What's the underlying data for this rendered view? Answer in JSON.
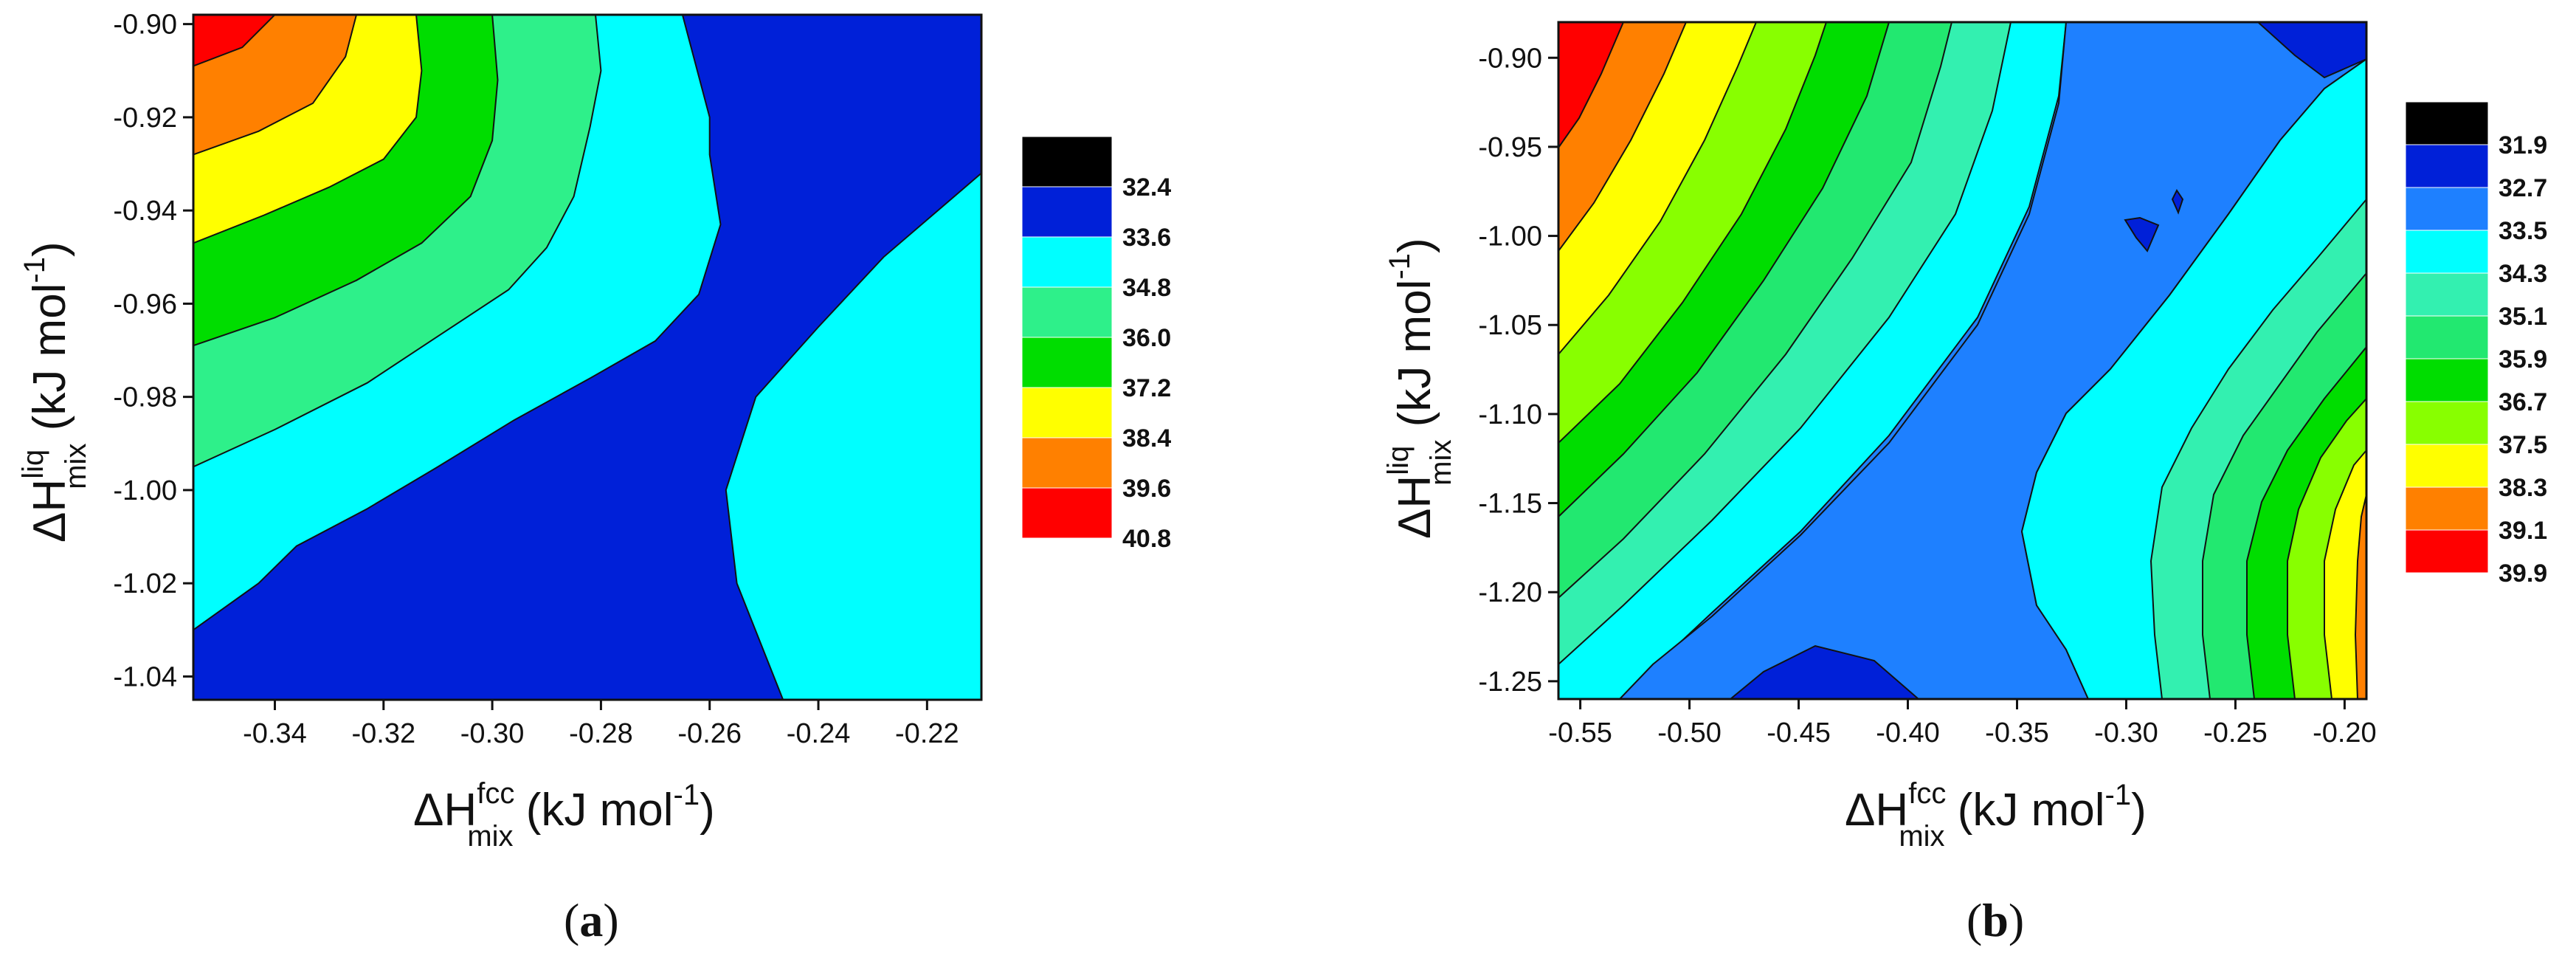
{
  "chart_data": [
    {
      "type": "heatmap",
      "panel_label": "a",
      "xlabel": {
        "main": "ΔH",
        "sup": "fcc",
        "sub": "mix",
        "unit": " (kJ mol",
        "unit_exp": "-1",
        "close": ")"
      },
      "ylabel": {
        "main": "ΔH",
        "sup": "liq",
        "sub": "mix",
        "unit": " (kJ mol",
        "unit_exp": "-1",
        "close": ")"
      },
      "xlim": [
        -0.355,
        -0.21
      ],
      "ylim": [
        -1.045,
        -0.898
      ],
      "x_ticks": [
        "-0.34",
        "-0.32",
        "-0.30",
        "-0.28",
        "-0.26",
        "-0.24",
        "-0.22"
      ],
      "x_tick_values": [
        -0.34,
        -0.32,
        -0.3,
        -0.28,
        -0.26,
        -0.24,
        -0.22
      ],
      "y_ticks": [
        "-0.90",
        "-0.92",
        "-0.94",
        "-0.96",
        "-0.98",
        "-1.00",
        "-1.02",
        "-1.04"
      ],
      "y_tick_values": [
        -0.9,
        -0.92,
        -0.94,
        -0.96,
        -0.98,
        -1.0,
        -1.02,
        -1.04
      ],
      "legend": {
        "labels": [
          "32.4",
          "33.6",
          "34.8",
          "36.0",
          "37.2",
          "38.4",
          "39.6",
          "40.8"
        ],
        "colors": [
          "#000000",
          "#0020d8",
          "#00ffff",
          "#2ef08a",
          "#00dd00",
          "#ffff00",
          "#ff8000",
          "#ff0000"
        ]
      },
      "regions": [
        {
          "level": "33.6",
          "color": "#00ffff",
          "points": [
            [
              -0.2465,
              -1.045
            ],
            [
              -0.255,
              -1.02
            ],
            [
              -0.257,
              -1.0
            ],
            [
              -0.2515,
              -0.98
            ],
            [
              -0.24,
              -0.965
            ],
            [
              -0.228,
              -0.95
            ],
            [
              -0.21,
              -0.932
            ],
            [
              -0.21,
              -1.045
            ]
          ]
        },
        {
          "level": "33.6",
          "color": "#00ffff",
          "points": [
            [
              -0.355,
              -1.03
            ],
            [
              -0.343,
              -1.02
            ],
            [
              -0.336,
              -1.012
            ],
            [
              -0.323,
              -1.004
            ],
            [
              -0.31,
              -0.995
            ],
            [
              -0.296,
              -0.985
            ],
            [
              -0.282,
              -0.976
            ],
            [
              -0.27,
              -0.968
            ],
            [
              -0.262,
              -0.958
            ],
            [
              -0.258,
              -0.943
            ],
            [
              -0.26,
              -0.928
            ],
            [
              -0.26,
              -0.92
            ],
            [
              -0.265,
              -0.898
            ],
            [
              -0.355,
              -0.898
            ]
          ]
        },
        {
          "level": "34.8",
          "color": "#2ef08a",
          "points": [
            [
              -0.355,
              -0.995
            ],
            [
              -0.34,
              -0.987
            ],
            [
              -0.323,
              -0.977
            ],
            [
              -0.31,
              -0.967
            ],
            [
              -0.297,
              -0.957
            ],
            [
              -0.29,
              -0.948
            ],
            [
              -0.285,
              -0.937
            ],
            [
              -0.282,
              -0.922
            ],
            [
              -0.28,
              -0.91
            ],
            [
              -0.281,
              -0.898
            ],
            [
              -0.355,
              -0.898
            ]
          ]
        },
        {
          "level": "36.0",
          "color": "#00dd00",
          "points": [
            [
              -0.355,
              -0.969
            ],
            [
              -0.34,
              -0.963
            ],
            [
              -0.325,
              -0.955
            ],
            [
              -0.313,
              -0.947
            ],
            [
              -0.304,
              -0.937
            ],
            [
              -0.3,
              -0.925
            ],
            [
              -0.299,
              -0.912
            ],
            [
              -0.3,
              -0.898
            ],
            [
              -0.355,
              -0.898
            ]
          ]
        },
        {
          "level": "37.2",
          "color": "#ffff00",
          "points": [
            [
              -0.355,
              -0.947
            ],
            [
              -0.342,
              -0.941
            ],
            [
              -0.33,
              -0.935
            ],
            [
              -0.32,
              -0.929
            ],
            [
              -0.314,
              -0.92
            ],
            [
              -0.313,
              -0.91
            ],
            [
              -0.314,
              -0.898
            ],
            [
              -0.355,
              -0.898
            ]
          ]
        },
        {
          "level": "38.4",
          "color": "#ff8000",
          "points": [
            [
              -0.355,
              -0.928
            ],
            [
              -0.343,
              -0.923
            ],
            [
              -0.333,
              -0.917
            ],
            [
              -0.327,
              -0.907
            ],
            [
              -0.325,
              -0.898
            ],
            [
              -0.355,
              -0.898
            ]
          ]
        },
        {
          "level": "39.6",
          "color": "#ff0000",
          "points": [
            [
              -0.355,
              -0.909
            ],
            [
              -0.346,
              -0.905
            ],
            [
              -0.34,
              -0.898
            ],
            [
              -0.355,
              -0.898
            ]
          ]
        }
      ],
      "background": "#0020d8"
    },
    {
      "type": "heatmap",
      "panel_label": "b",
      "xlabel": {
        "main": "ΔH",
        "sup": "fcc",
        "sub": "mix",
        "unit": " (kJ mol",
        "unit_exp": "-1",
        "close": ")"
      },
      "ylabel": {
        "main": "ΔH",
        "sup": "liq",
        "sub": "mix",
        "unit": " (kJ mol",
        "unit_exp": "-1",
        "close": ")"
      },
      "xlim": [
        -0.56,
        -0.19
      ],
      "ylim": [
        -1.26,
        -0.88
      ],
      "x_ticks": [
        "-0.55",
        "-0.50",
        "-0.45",
        "-0.40",
        "-0.35",
        "-0.30",
        "-0.25",
        "-0.20"
      ],
      "x_tick_values": [
        -0.55,
        -0.5,
        -0.45,
        -0.4,
        -0.35,
        -0.3,
        -0.25,
        -0.2
      ],
      "y_ticks": [
        "-0.90",
        "-0.95",
        "-1.00",
        "-1.05",
        "-1.10",
        "-1.15",
        "-1.20",
        "-1.25"
      ],
      "y_tick_values": [
        -0.9,
        -0.95,
        -1.0,
        -1.05,
        -1.1,
        -1.15,
        -1.2,
        -1.25
      ],
      "legend": {
        "labels": [
          "31.9",
          "32.7",
          "33.5",
          "34.3",
          "35.1",
          "35.9",
          "36.7",
          "37.5",
          "38.3",
          "39.1",
          "39.9"
        ],
        "colors": [
          "#000000",
          "#0020d8",
          "#1e80ff",
          "#00ffff",
          "#33f0b0",
          "#22e870",
          "#00dd00",
          "#88ff00",
          "#ffff00",
          "#ff8000",
          "#ff0000"
        ]
      },
      "background": "#1e80ff"
    }
  ]
}
